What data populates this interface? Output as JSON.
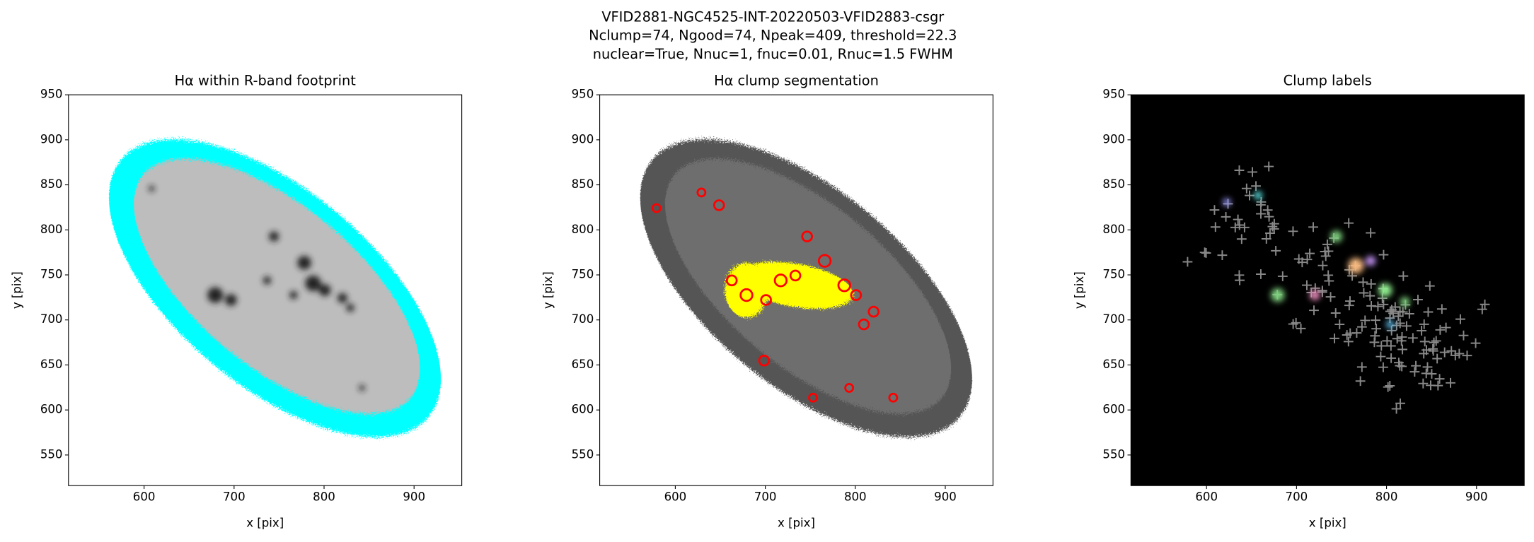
{
  "title": [
    "VFID2881-NGC4525-INT-20220503-VFID2883-csgr",
    "Nclump=74, Ngood=74, Npeak=409, threshold=22.3",
    "nuclear=True, Nnuc=1, fnuc=0.01, Rnuc=1.5 FWHM"
  ],
  "chart_data": [
    {
      "type": "image",
      "title": "Hα within R-band footprint",
      "xlabel": "x [pix]",
      "ylabel": "y [pix]",
      "xlim": [
        516,
        953
      ],
      "ylim": [
        516,
        950
      ],
      "xticks": [
        600,
        700,
        800,
        900
      ],
      "yticks": [
        550,
        600,
        650,
        700,
        750,
        800,
        850,
        900,
        950
      ]
    },
    {
      "type": "image",
      "title": "Hα clump segmentation",
      "xlabel": "x [pix]",
      "ylabel": "y [pix]",
      "xlim": [
        516,
        953
      ],
      "ylim": [
        516,
        950
      ],
      "xticks": [
        600,
        700,
        800,
        900
      ],
      "yticks": [
        550,
        600,
        650,
        700,
        750,
        800,
        850,
        900,
        950
      ]
    },
    {
      "type": "image",
      "title": "Clump labels",
      "xlabel": "x [pix]",
      "ylabel": "y [pix]",
      "xlim": [
        516,
        953
      ],
      "ylim": [
        516,
        950
      ],
      "xticks": [
        600,
        700,
        800,
        900
      ],
      "yticks": [
        550,
        600,
        650,
        700,
        750,
        800,
        850,
        900,
        950
      ]
    }
  ]
}
